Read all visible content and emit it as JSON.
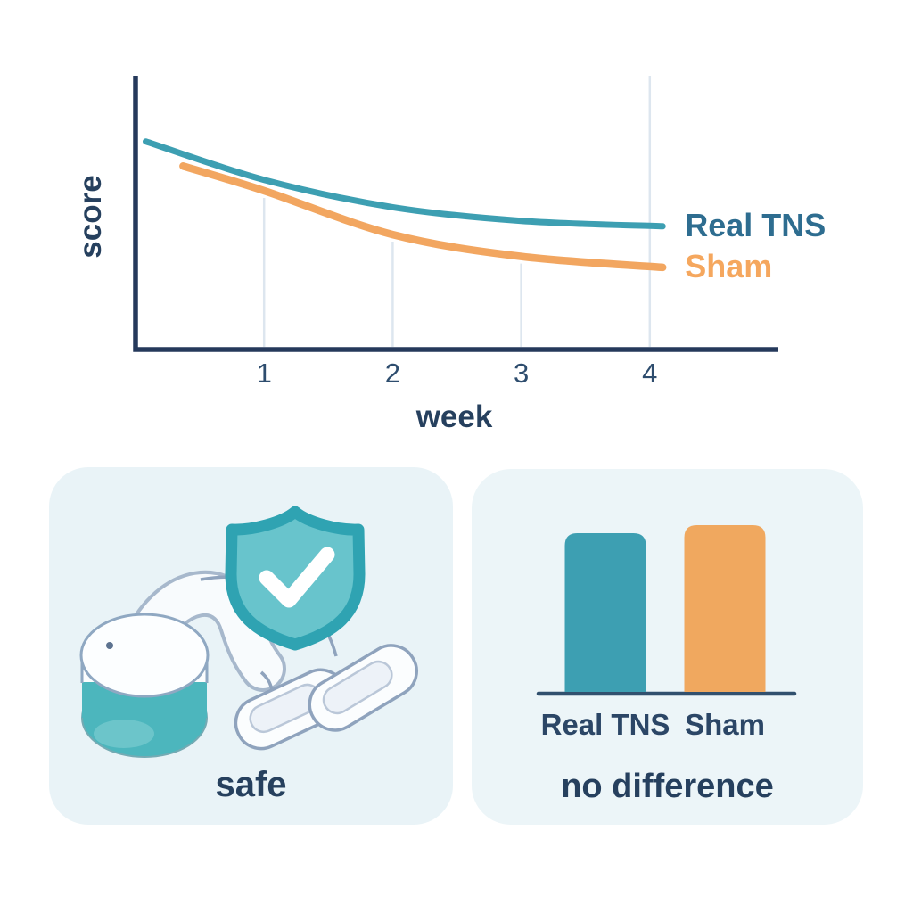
{
  "chart_data": [
    {
      "type": "line",
      "title": "",
      "xlabel": "week",
      "ylabel": "score",
      "xlim": [
        0,
        5
      ],
      "ylim": [
        0,
        10
      ],
      "x_ticks": [
        1,
        2,
        3,
        4
      ],
      "grid": "vertical-at-ticks",
      "legend_position": "right-of-line-ends",
      "axis_color": "#25395b",
      "tick_color": "#2e4d6e",
      "axis_label_color": "#26405e",
      "gridline_color": "#dde6ef",
      "series": [
        {
          "name": "Real TNS",
          "color": "#3d9fb2",
          "label_color": "#2e6d90",
          "stroke_width": 7,
          "x": [
            0.08,
            1,
            2,
            3,
            4.1
          ],
          "y": [
            7.6,
            6.2,
            5.2,
            4.7,
            4.5
          ]
        },
        {
          "name": "Sham",
          "color": "#f2a660",
          "label_color": "#f5a75e",
          "stroke_width": 8.5,
          "x": [
            0.37,
            1,
            2,
            3,
            4.1
          ],
          "y": [
            6.7,
            5.8,
            4.2,
            3.4,
            3.0
          ]
        }
      ]
    },
    {
      "type": "bar",
      "categories": [
        "Real TNS",
        "Sham"
      ],
      "values": [
        6.0,
        6.3
      ],
      "colors": [
        "#3d9fb2",
        "#f0a85f"
      ],
      "ylim": [
        0,
        10
      ],
      "baseline_color": "#31506e",
      "label_color": "#2b4666",
      "title": "no difference"
    }
  ],
  "cards": {
    "safety": {
      "caption": "safe",
      "background": "#e9f3f7",
      "icons": [
        "tns-device-illustration",
        "shield-check-icon"
      ]
    },
    "comparison": {
      "caption": "no difference",
      "background": "#ecf5f8"
    }
  },
  "colors": {
    "navy_text": "#26405e",
    "teal": "#3d9fb2",
    "orange": "#f0a85f",
    "shield_border": "#2fa3b2",
    "shield_fill": "#68c4cc",
    "device_teal": "#4cb6bd",
    "outline_slate": "#8fa3bd",
    "checkmark": "#ffffff"
  }
}
